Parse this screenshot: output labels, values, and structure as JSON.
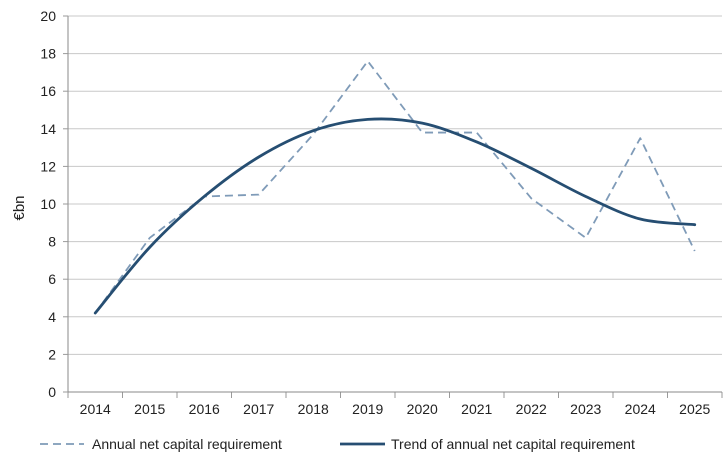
{
  "chart_data": {
    "type": "line",
    "title": "",
    "xlabel": "",
    "ylabel": "€bn",
    "ylim": [
      0,
      20
    ],
    "yticks": [
      0,
      2,
      4,
      6,
      8,
      10,
      12,
      14,
      16,
      18,
      20
    ],
    "categories": [
      "2014",
      "2015",
      "2016",
      "2017",
      "2018",
      "2019",
      "2020",
      "2021",
      "2022",
      "2023",
      "2024",
      "2025"
    ],
    "grid": true,
    "legend_position": "bottom",
    "series": [
      {
        "name": "Annual net capital requirement",
        "style": "dashed",
        "color": "#7f9bb8",
        "values": [
          4.2,
          8.2,
          10.4,
          10.5,
          13.7,
          17.6,
          13.8,
          13.8,
          10.3,
          8.2,
          13.5,
          7.5
        ]
      },
      {
        "name": "Trend of annual net capital requirement",
        "style": "solid",
        "color": "#264e72",
        "values": [
          4.2,
          7.7,
          10.4,
          12.5,
          13.9,
          14.5,
          14.3,
          13.3,
          11.9,
          10.4,
          9.2,
          8.9
        ]
      }
    ]
  }
}
